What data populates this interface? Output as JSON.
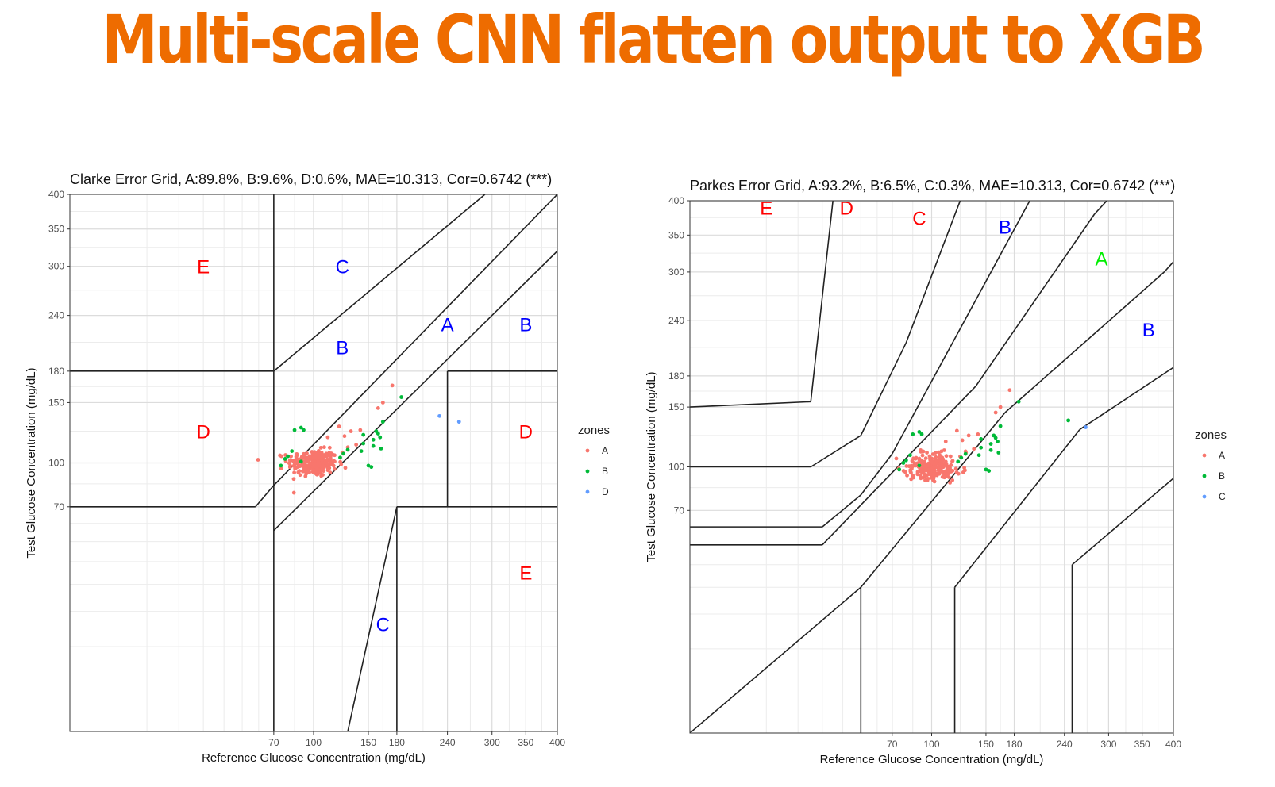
{
  "slide_title": "Multi-scale CNN flatten output to XGB",
  "chart_data": [
    {
      "type": "scatter",
      "title": "Clarke Error Grid, A:89.8%, B:9.6%, D:0.6%, MAE=10.313, Cor=0.6742 (***)",
      "xlabel": "Reference Glucose Concentration (mg/dL)",
      "ylabel": "Test Glucose Concentration (mg/dL)",
      "scale": "sqrt",
      "xlim": [
        0,
        400
      ],
      "ylim": [
        0,
        400
      ],
      "xticks": [
        70,
        100,
        150,
        180,
        240,
        300,
        350,
        400
      ],
      "yticks": [
        70,
        100,
        150,
        180,
        240,
        300,
        350,
        400
      ],
      "grid": true,
      "legend": {
        "title": "zones",
        "position": "right",
        "entries": [
          "A",
          "B",
          "D"
        ]
      },
      "colors": {
        "A": "#f8766d",
        "B": "#00ba38",
        "D": "#619cff",
        "C": "#619cff",
        "E": "#ff0000",
        "zoneA": "#00ee00",
        "zoneB": "#0000ff"
      },
      "zone_labels": [
        {
          "text": "E",
          "x": 30,
          "y": 300,
          "color": "E"
        },
        {
          "text": "C",
          "x": 125,
          "y": 300,
          "color": "zoneB"
        },
        {
          "text": "A",
          "x": 240,
          "y": 230,
          "color": "zoneB"
        },
        {
          "text": "B",
          "x": 350,
          "y": 230,
          "color": "zoneB"
        },
        {
          "text": "B",
          "x": 125,
          "y": 205,
          "color": "zoneB"
        },
        {
          "text": "D",
          "x": 30,
          "y": 125,
          "color": "E"
        },
        {
          "text": "D",
          "x": 350,
          "y": 125,
          "color": "E"
        },
        {
          "text": "E",
          "x": 350,
          "y": 35,
          "color": "E"
        },
        {
          "text": "C",
          "x": 165,
          "y": 16,
          "color": "zoneB"
        }
      ],
      "zone_lines": [
        [
          [
            70,
            0
          ],
          [
            70,
            400
          ]
        ],
        [
          [
            0,
            180
          ],
          [
            70,
            180
          ]
        ],
        [
          [
            70,
            180
          ],
          [
            290,
            400
          ]
        ],
        [
          [
            70,
            84
          ],
          [
            400,
            400
          ]
        ],
        [
          [
            70,
            56
          ],
          [
            400,
            320
          ]
        ],
        [
          [
            0,
            70
          ],
          [
            58,
            70
          ]
        ],
        [
          [
            58,
            70
          ],
          [
            70,
            84
          ]
        ],
        [
          [
            130,
            0
          ],
          [
            180,
            70
          ]
        ],
        [
          [
            180,
            0
          ],
          [
            180,
            70
          ]
        ],
        [
          [
            180,
            70
          ],
          [
            400,
            70
          ]
        ],
        [
          [
            240,
            70
          ],
          [
            240,
            180
          ]
        ],
        [
          [
            240,
            180
          ],
          [
            400,
            180
          ]
        ]
      ],
      "series": [
        {
          "name": "A",
          "cluster": {
            "cx": 100,
            "cy": 100,
            "sx": 10,
            "sy": 5,
            "n": 260
          },
          "extra": [
            [
              122,
              129
            ],
            [
              127,
              121
            ],
            [
              133,
              125
            ],
            [
              142,
              126
            ],
            [
              160,
              145
            ],
            [
              165,
              150
            ],
            [
              175,
              166
            ],
            [
              125,
              108
            ],
            [
              130,
              112
            ],
            [
              138,
              114
            ],
            [
              112,
              120
            ]
          ]
        },
        {
          "name": "B",
          "points": [
            [
              75,
              98
            ],
            [
              78,
              103
            ],
            [
              80,
              105
            ],
            [
              83,
              109
            ],
            [
              85,
              126
            ],
            [
              92,
              126
            ],
            [
              90,
              101
            ],
            [
              123,
              104
            ],
            [
              126,
              107
            ],
            [
              130,
              110
            ],
            [
              143,
              109
            ],
            [
              145,
              122
            ],
            [
              150,
              98
            ],
            [
              153,
              97
            ],
            [
              155,
              113
            ],
            [
              158,
              125
            ],
            [
              160,
              123
            ],
            [
              162,
              120
            ],
            [
              163,
              111
            ],
            [
              165,
              133
            ],
            [
              145,
              115
            ],
            [
              155,
              118
            ],
            [
              185,
              155
            ],
            [
              90,
              128
            ]
          ]
        },
        {
          "name": "D",
          "points": [
            [
              230,
              138
            ],
            [
              255,
              133
            ]
          ]
        }
      ]
    },
    {
      "type": "scatter",
      "title": "Parkes Error Grid, A:93.2%, B:6.5%, C:0.3%, MAE=10.313, Cor=0.6742 (***)",
      "xlabel": "Reference Glucose Concentration (mg/dL)",
      "ylabel": "Test Glucose Concentration (mg/dL)",
      "scale": "sqrt",
      "xlim": [
        0,
        400
      ],
      "ylim": [
        0,
        400
      ],
      "xticks": [
        70,
        100,
        150,
        180,
        240,
        300,
        350,
        400
      ],
      "yticks": [
        70,
        100,
        150,
        180,
        240,
        300,
        350,
        400
      ],
      "grid": true,
      "legend": {
        "title": "zones",
        "position": "right",
        "entries": [
          "A",
          "B",
          "C"
        ]
      },
      "colors": {
        "A": "#f8766d",
        "B": "#00ba38",
        "D": "#619cff",
        "C": "#619cff",
        "E": "#ff0000",
        "zoneA": "#00ee00",
        "zoneB": "#0000ff"
      },
      "zone_labels": [
        {
          "text": "E",
          "x": 10,
          "y": 390,
          "color": "E"
        },
        {
          "text": "D",
          "x": 42,
          "y": 390,
          "color": "E"
        },
        {
          "text": "C",
          "x": 90,
          "y": 375,
          "color": "E"
        },
        {
          "text": "B",
          "x": 170,
          "y": 362,
          "color": "zoneB"
        },
        {
          "text": "A",
          "x": 290,
          "y": 318,
          "color": "zoneA"
        },
        {
          "text": "B",
          "x": 360,
          "y": 230,
          "color": "zoneB"
        }
      ],
      "zone_lines": [
        [
          [
            0,
            150
          ],
          [
            25,
            155
          ]
        ],
        [
          [
            25,
            155
          ],
          [
            35,
            400
          ]
        ],
        [
          [
            0,
            100
          ],
          [
            25,
            100
          ]
        ],
        [
          [
            25,
            100
          ],
          [
            50,
            125
          ]
        ],
        [
          [
            50,
            125
          ],
          [
            80,
            215
          ]
        ],
        [
          [
            80,
            215
          ],
          [
            125,
            400
          ]
        ],
        [
          [
            0,
            60
          ],
          [
            30,
            60
          ]
        ],
        [
          [
            30,
            60
          ],
          [
            50,
            80
          ]
        ],
        [
          [
            50,
            80
          ],
          [
            70,
            110
          ]
        ],
        [
          [
            70,
            110
          ],
          [
            260,
            550
          ]
        ],
        [
          [
            0,
            50
          ],
          [
            30,
            50
          ]
        ],
        [
          [
            30,
            50
          ],
          [
            140,
            170
          ]
        ],
        [
          [
            140,
            170
          ],
          [
            280,
            380
          ]
        ],
        [
          [
            280,
            380
          ],
          [
            430,
            550
          ]
        ],
        [
          [
            0,
            0
          ],
          [
            50,
            30
          ]
        ],
        [
          [
            50,
            30
          ],
          [
            170,
            145
          ]
        ],
        [
          [
            170,
            145
          ],
          [
            385,
            300
          ]
        ],
        [
          [
            385,
            300
          ],
          [
            550,
            450
          ]
        ],
        [
          [
            50,
            0
          ],
          [
            50,
            30
          ]
        ],
        [
          [
            120,
            0
          ],
          [
            120,
            30
          ]
        ],
        [
          [
            120,
            30
          ],
          [
            260,
            130
          ]
        ],
        [
          [
            260,
            130
          ],
          [
            550,
            250
          ]
        ],
        [
          [
            250,
            0
          ],
          [
            250,
            40
          ]
        ],
        [
          [
            250,
            40
          ],
          [
            550,
            150
          ]
        ]
      ],
      "series": [
        {
          "name": "A",
          "cluster": {
            "cx": 100,
            "cy": 100,
            "sx": 10,
            "sy": 5,
            "n": 260
          },
          "extra": [
            [
              122,
              129
            ],
            [
              127,
              121
            ],
            [
              133,
              125
            ],
            [
              142,
              126
            ],
            [
              160,
              145
            ],
            [
              165,
              150
            ],
            [
              175,
              166
            ],
            [
              125,
              108
            ],
            [
              130,
              112
            ],
            [
              138,
              114
            ],
            [
              112,
              120
            ]
          ]
        },
        {
          "name": "B",
          "points": [
            [
              75,
              98
            ],
            [
              78,
              103
            ],
            [
              80,
              105
            ],
            [
              83,
              109
            ],
            [
              85,
              126
            ],
            [
              92,
              126
            ],
            [
              90,
              101
            ],
            [
              123,
              104
            ],
            [
              126,
              107
            ],
            [
              130,
              110
            ],
            [
              143,
              109
            ],
            [
              145,
              122
            ],
            [
              150,
              98
            ],
            [
              153,
              97
            ],
            [
              155,
              113
            ],
            [
              158,
              125
            ],
            [
              160,
              123
            ],
            [
              162,
              120
            ],
            [
              163,
              111
            ],
            [
              165,
              133
            ],
            [
              145,
              115
            ],
            [
              155,
              118
            ],
            [
              185,
              155
            ],
            [
              90,
              128
            ],
            [
              245,
              138
            ]
          ]
        },
        {
          "name": "C",
          "points": [
            [
              268,
              132
            ]
          ]
        }
      ]
    }
  ]
}
